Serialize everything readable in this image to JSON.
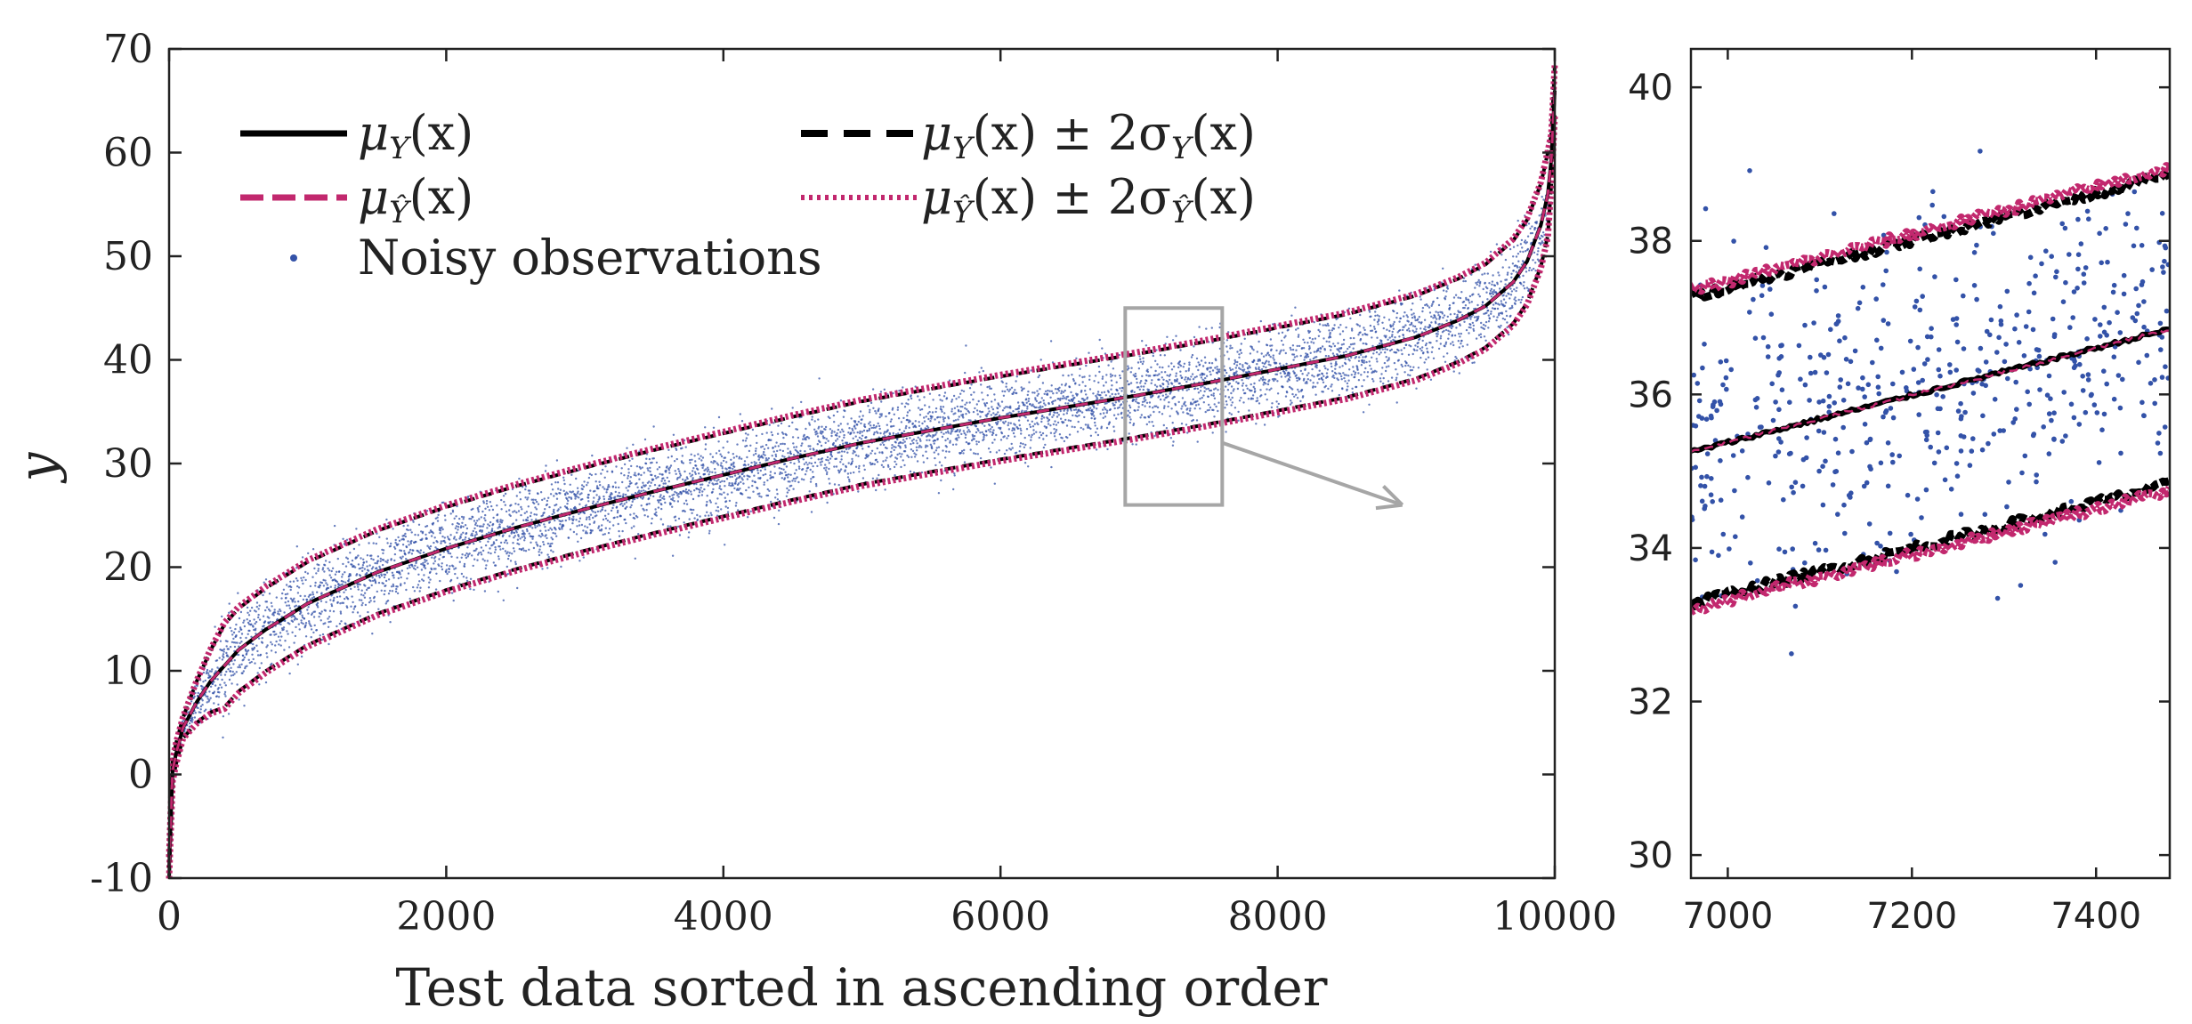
{
  "chart_data": [
    {
      "type": "scatter",
      "panel": "main",
      "xlabel": "Test data sorted in ascending order",
      "ylabel": "y",
      "xlim": [
        0,
        10000
      ],
      "ylim": [
        -10,
        70
      ],
      "xticks": [
        0,
        2000,
        4000,
        6000,
        8000,
        10000
      ],
      "xtick_labels": [
        "0",
        "2000",
        "4000",
        "6000",
        "8000",
        "10000"
      ],
      "yticks": [
        -10,
        0,
        10,
        20,
        30,
        40,
        50,
        60,
        70
      ],
      "ytick_labels": [
        "-10",
        "0",
        "10",
        "20",
        "30",
        "40",
        "50",
        "60",
        "70"
      ],
      "n_points": 10000,
      "mean_curve": {
        "x": [
          0,
          20,
          50,
          100,
          200,
          300,
          500,
          700,
          1000,
          1500,
          2000,
          2500,
          3000,
          3500,
          4000,
          4500,
          5000,
          5500,
          6000,
          6500,
          7000,
          7500,
          8000,
          8500,
          9000,
          9300,
          9500,
          9700,
          9800,
          9900,
          9950,
          9980,
          10000
        ],
        "y": [
          -9,
          0,
          2,
          4.5,
          7,
          9,
          12,
          14,
          16.5,
          19.5,
          21.8,
          23.8,
          25.6,
          27.3,
          28.9,
          30.5,
          32,
          33.2,
          34.4,
          35.5,
          36.6,
          37.8,
          39.1,
          40.4,
          42.2,
          43.8,
          45.2,
          47.5,
          49.5,
          53,
          56,
          60,
          66
        ]
      },
      "band_half_width_two_sigma": 4.0,
      "legend": {
        "position": "top-left",
        "entries": [
          {
            "label": "μ",
            "sub": "Y",
            "tail": "(x)",
            "style": "solid",
            "color": "#000000"
          },
          {
            "label": "μ",
            "sub": "Ŷ",
            "tail": "(x)",
            "style": "dashed",
            "color": "#C2286E"
          },
          {
            "label": "Noisy observations",
            "style": "marker",
            "color": "#3352A8"
          },
          {
            "label": "μ",
            "sub": "Y",
            "tail": "(x) ± 2σ",
            "sub2": "Y",
            "tail2": "(x)",
            "style": "dashed",
            "color": "#000000"
          },
          {
            "label": "μ",
            "sub": "Ŷ",
            "tail": "(x) ± 2σ",
            "sub2": "Ŷ",
            "tail2": "(x)",
            "style": "dotted",
            "color": "#C2286E"
          }
        ]
      },
      "zoom_box": {
        "x": [
          6900,
          7600
        ],
        "y": [
          26,
          45
        ]
      },
      "colors": {
        "true": "#000000",
        "predicted": "#C2286E",
        "observations": "#3352A8",
        "zoom": "#A6A6A6"
      }
    },
    {
      "type": "scatter",
      "panel": "inset",
      "xlim": [
        6960,
        7480
      ],
      "ylim": [
        29.7,
        40.5
      ],
      "xticks": [
        7000,
        7200,
        7400
      ],
      "xtick_labels": [
        "7000",
        "7200",
        "7400"
      ],
      "yticks": [
        30,
        32,
        34,
        36,
        38,
        40
      ],
      "ytick_labels": [
        "30",
        "32",
        "34",
        "36",
        "38",
        "40"
      ],
      "mean_line": {
        "x": [
          6960,
          7480
        ],
        "y": [
          35.25,
          36.85
        ]
      },
      "upper_band": {
        "x": [
          6960,
          7480
        ],
        "y": [
          37.35,
          38.95
        ]
      },
      "lower_band": {
        "x": [
          6960,
          7480
        ],
        "y": [
          33.2,
          34.75
        ]
      },
      "n_points": 520
    }
  ]
}
